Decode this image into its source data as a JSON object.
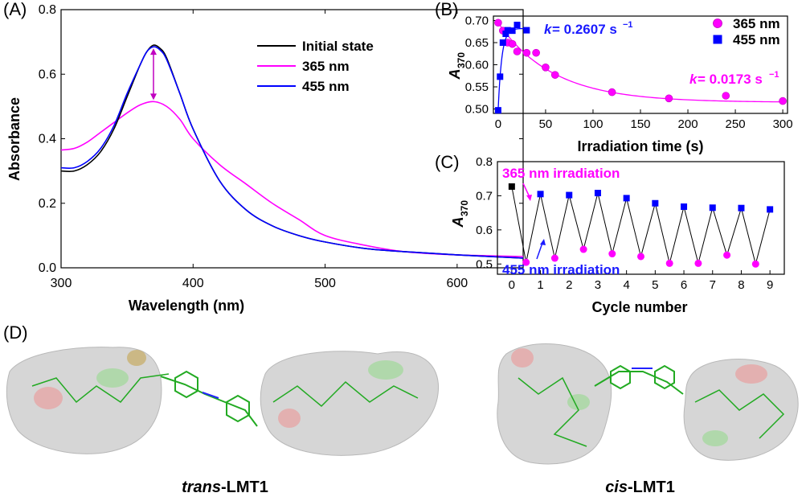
{
  "chart_data": [
    {
      "panel": "(A)",
      "type": "line",
      "xlabel": "Wavelength (nm)",
      "ylabel": "Absorbance",
      "xlim": [
        300,
        650
      ],
      "ylim": [
        0,
        0.8
      ],
      "xticks": [
        300,
        400,
        500,
        600
      ],
      "yticks": [
        0.0,
        0.2,
        0.4,
        0.6,
        0.8
      ],
      "legend_position": "top-right",
      "annotation": "double arrow at 370 nm between 0.69 and 0.52",
      "series": [
        {
          "name": "Initial state",
          "color": "#000000",
          "x": [
            300,
            310,
            320,
            330,
            340,
            350,
            360,
            365,
            370,
            375,
            380,
            390,
            400,
            420,
            440,
            460,
            480,
            500,
            530,
            560,
            600,
            650
          ],
          "y": [
            0.3,
            0.3,
            0.32,
            0.36,
            0.43,
            0.53,
            0.63,
            0.67,
            0.69,
            0.68,
            0.65,
            0.54,
            0.43,
            0.27,
            0.18,
            0.13,
            0.1,
            0.08,
            0.06,
            0.05,
            0.04,
            0.03
          ]
        },
        {
          "name": "365 nm",
          "color": "#ff00ff",
          "x": [
            300,
            310,
            320,
            330,
            340,
            350,
            360,
            370,
            380,
            390,
            400,
            420,
            440,
            460,
            480,
            500,
            530,
            560,
            600,
            650
          ],
          "y": [
            0.365,
            0.37,
            0.39,
            0.42,
            0.45,
            0.48,
            0.505,
            0.515,
            0.5,
            0.46,
            0.4,
            0.32,
            0.26,
            0.2,
            0.15,
            0.1,
            0.07,
            0.05,
            0.04,
            0.035
          ]
        },
        {
          "name": "455 nm",
          "color": "#0000ff",
          "x": [
            300,
            310,
            320,
            330,
            340,
            350,
            360,
            365,
            370,
            375,
            380,
            390,
            400,
            420,
            440,
            460,
            480,
            500,
            530,
            560,
            600,
            650
          ],
          "y": [
            0.31,
            0.31,
            0.33,
            0.37,
            0.44,
            0.54,
            0.63,
            0.67,
            0.685,
            0.675,
            0.645,
            0.54,
            0.43,
            0.27,
            0.18,
            0.13,
            0.1,
            0.08,
            0.06,
            0.05,
            0.04,
            0.03
          ]
        }
      ]
    },
    {
      "panel": "(B)",
      "type": "scatter",
      "xlabel": "Irradiation time (s)",
      "ylabel_main": "A",
      "ylabel_sub": "370",
      "xlim": [
        -5,
        305
      ],
      "ylim": [
        0.49,
        0.71
      ],
      "xticks": [
        0,
        50,
        100,
        150,
        200,
        250,
        300
      ],
      "yticks": [
        0.5,
        0.55,
        0.6,
        0.65,
        0.7
      ],
      "legend_position": "top-right",
      "series": [
        {
          "name": "365 nm",
          "marker": "circle",
          "color": "#ff00ff",
          "x": [
            0,
            5,
            10,
            15,
            20,
            30,
            40,
            50,
            60,
            120,
            180,
            240,
            300
          ],
          "y": [
            0.695,
            0.677,
            0.65,
            0.647,
            0.63,
            0.627,
            0.627,
            0.594,
            0.577,
            0.538,
            0.524,
            0.53,
            0.518
          ],
          "fit": {
            "A0": 0.515,
            "A1": 0.18,
            "k": 0.0173
          }
        },
        {
          "name": "455 nm",
          "marker": "square",
          "color": "#0000ff",
          "x": [
            0,
            2,
            5,
            8,
            10,
            15,
            20,
            30
          ],
          "y": [
            0.497,
            0.573,
            0.65,
            0.67,
            0.678,
            0.677,
            0.69,
            0.678
          ],
          "fit": {
            "A0": 0.682,
            "A1": -0.185,
            "k": 0.2607
          }
        }
      ],
      "annotations": {
        "k_blue_main": "k",
        "k_blue_val": " = 0.2607 s",
        "k_pink_main": "k",
        "k_pink_val": " = 0.0173 s",
        "unit_sup": "−1"
      }
    },
    {
      "panel": "(C)",
      "type": "line",
      "xlabel": "Cycle number",
      "ylabel_main": "A",
      "ylabel_sub": "370",
      "xlim": [
        -0.5,
        9.5
      ],
      "ylim": [
        0.47,
        0.8
      ],
      "xticks": [
        0,
        1,
        2,
        3,
        4,
        5,
        6,
        7,
        8,
        9
      ],
      "yticks": [
        0.5,
        0.6,
        0.7,
        0.8
      ],
      "x": [
        0,
        0.5,
        1,
        1.5,
        2,
        2.5,
        3,
        3.5,
        4,
        4.5,
        5,
        5.5,
        6,
        6.5,
        7,
        7.5,
        8,
        8.5,
        9
      ],
      "y": [
        0.727,
        0.505,
        0.705,
        0.517,
        0.702,
        0.543,
        0.708,
        0.53,
        0.693,
        0.522,
        0.678,
        0.502,
        0.668,
        0.502,
        0.665,
        0.526,
        0.664,
        0.5,
        0.66
      ],
      "annotations": {
        "top": "365 nm irradiation",
        "bottom": "455 nm irradiation"
      }
    }
  ],
  "panel_d": {
    "label": "(D)",
    "trans_italic": "trans",
    "trans_rest": "-LMT1",
    "cis_italic": "cis",
    "cis_rest": "-LMT1"
  }
}
